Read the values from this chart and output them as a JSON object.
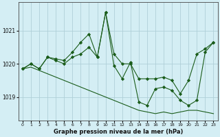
{
  "xlabel": "Graphe pression niveau de la mer (hPa)",
  "background_color": "#d4eef4",
  "plot_bg_color": "#d4eef4",
  "line_color": "#1a5c1a",
  "grid_color": "#b0cfd8",
  "hours": [
    0,
    1,
    2,
    3,
    4,
    5,
    6,
    7,
    8,
    9,
    10,
    11,
    12,
    13,
    14,
    15,
    16,
    17,
    18,
    19,
    20,
    21,
    22,
    23
  ],
  "series1": [
    1019.85,
    1020.0,
    1019.85,
    1020.2,
    1020.1,
    1020.0,
    1020.2,
    1020.3,
    1020.5,
    1020.2,
    1021.55,
    1020.3,
    1020.0,
    1020.0,
    1019.55,
    1019.55,
    1019.55,
    1019.6,
    1019.5,
    1019.1,
    1019.5,
    1020.3,
    1020.45,
    1020.65
  ],
  "series2": [
    1019.85,
    1020.0,
    1019.85,
    1020.2,
    1020.15,
    1020.1,
    1020.35,
    1020.65,
    1020.9,
    1020.2,
    1021.55,
    1019.95,
    1019.55,
    1020.05,
    1018.85,
    1018.75,
    1019.25,
    1019.3,
    1019.2,
    1018.9,
    1018.75,
    1018.9,
    1020.35,
    1020.65
  ],
  "series3": [
    1019.85,
    1019.9,
    1019.8,
    1019.7,
    1019.6,
    1019.5,
    1019.4,
    1019.3,
    1019.2,
    1019.1,
    1019.0,
    1018.9,
    1018.8,
    1018.7,
    1018.6,
    1018.55,
    1018.5,
    1018.55,
    1018.5,
    1018.55,
    1018.6,
    1018.6,
    1018.55,
    1018.5
  ],
  "yticks": [
    1019,
    1020,
    1021
  ],
  "ylim": [
    1018.3,
    1021.85
  ],
  "xlim": [
    -0.5,
    23.5
  ]
}
